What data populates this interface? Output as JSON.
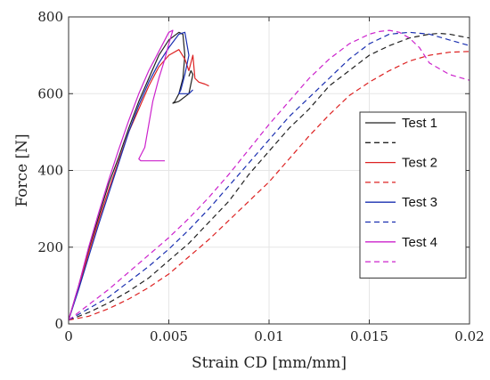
{
  "chart_data": {
    "type": "line",
    "xlabel": "Strain CD [mm/mm]",
    "ylabel": "Force [N]",
    "xlim": [
      0,
      0.02
    ],
    "ylim": [
      0,
      800
    ],
    "xticks": [
      0,
      0.005,
      0.01,
      0.015,
      0.02
    ],
    "xtick_labels": [
      "0",
      "0.005",
      "0.01",
      "0.015",
      "0.02"
    ],
    "yticks": [
      0,
      200,
      400,
      600,
      800
    ],
    "ytick_labels": [
      "0",
      "200",
      "400",
      "600",
      "800"
    ],
    "grid": true,
    "legend_position": "right",
    "series": [
      {
        "name": "Test 1",
        "color": "#222222",
        "style": "solid",
        "x": [
          0,
          0.0005,
          0.001,
          0.0015,
          0.002,
          0.0025,
          0.003,
          0.0035,
          0.004,
          0.0045,
          0.005,
          0.0055,
          0.0057,
          0.0058,
          0.0057,
          0.0055,
          0.0053,
          0.0052,
          0.0055,
          0.006,
          0.0062,
          0.0061,
          0.006
        ],
        "y": [
          10,
          100,
          195,
          280,
          365,
          435,
          510,
          580,
          640,
          700,
          740,
          760,
          755,
          700,
          640,
          600,
          580,
          575,
          580,
          600,
          650,
          660,
          645
        ]
      },
      {
        "name": "",
        "color": "#222222",
        "style": "dashed",
        "x": [
          0,
          0.001,
          0.002,
          0.003,
          0.004,
          0.005,
          0.006,
          0.007,
          0.008,
          0.009,
          0.01,
          0.011,
          0.012,
          0.013,
          0.014,
          0.015,
          0.016,
          0.017,
          0.018,
          0.0185,
          0.019,
          0.0195,
          0.02
        ],
        "y": [
          10,
          30,
          55,
          85,
          120,
          165,
          210,
          265,
          320,
          390,
          450,
          510,
          560,
          620,
          660,
          700,
          725,
          745,
          755,
          757,
          755,
          750,
          745
        ]
      },
      {
        "name": "Test 2",
        "color": "#dd2222",
        "style": "solid",
        "x": [
          0,
          0.0005,
          0.001,
          0.0015,
          0.002,
          0.0025,
          0.003,
          0.0035,
          0.004,
          0.0045,
          0.005,
          0.0055,
          0.0058,
          0.006,
          0.0062,
          0.0063,
          0.0065,
          0.0068,
          0.007
        ],
        "y": [
          10,
          95,
          185,
          270,
          350,
          425,
          500,
          560,
          620,
          670,
          700,
          715,
          690,
          660,
          700,
          640,
          630,
          625,
          620
        ]
      },
      {
        "name": "",
        "color": "#dd2222",
        "style": "dashed",
        "x": [
          0,
          0.001,
          0.002,
          0.003,
          0.004,
          0.005,
          0.006,
          0.007,
          0.008,
          0.009,
          0.01,
          0.011,
          0.012,
          0.013,
          0.014,
          0.015,
          0.016,
          0.017,
          0.018,
          0.019,
          0.02
        ],
        "y": [
          10,
          20,
          40,
          65,
          95,
          130,
          175,
          220,
          270,
          320,
          370,
          430,
          490,
          545,
          595,
          630,
          660,
          685,
          700,
          708,
          710
        ]
      },
      {
        "name": "Test 3",
        "color": "#1a2fb0",
        "style": "solid",
        "x": [
          0,
          0.0005,
          0.001,
          0.0015,
          0.002,
          0.0025,
          0.003,
          0.0035,
          0.004,
          0.0045,
          0.005,
          0.0055,
          0.0058,
          0.006,
          0.0058,
          0.0056,
          0.0055,
          0.006,
          0.0062
        ],
        "y": [
          10,
          90,
          175,
          260,
          340,
          420,
          500,
          570,
          630,
          680,
          720,
          755,
          760,
          700,
          650,
          610,
          600,
          600,
          610
        ]
      },
      {
        "name": "",
        "color": "#1a2fb0",
        "style": "dashed",
        "x": [
          0,
          0.001,
          0.002,
          0.003,
          0.004,
          0.005,
          0.006,
          0.007,
          0.008,
          0.009,
          0.01,
          0.011,
          0.012,
          0.013,
          0.014,
          0.015,
          0.016,
          0.017,
          0.018,
          0.019,
          0.02
        ],
        "y": [
          10,
          40,
          70,
          110,
          150,
          195,
          245,
          300,
          360,
          420,
          480,
          540,
          590,
          640,
          690,
          730,
          755,
          760,
          755,
          740,
          725
        ]
      },
      {
        "name": "Test 4",
        "color": "#cc22cc",
        "style": "solid",
        "x": [
          0,
          0.0005,
          0.001,
          0.0015,
          0.002,
          0.0025,
          0.003,
          0.0035,
          0.004,
          0.0045,
          0.005,
          0.0052,
          0.005,
          0.0048,
          0.0045,
          0.0042,
          0.004,
          0.0038,
          0.0035,
          0.0036,
          0.0048
        ],
        "y": [
          10,
          100,
          200,
          290,
          375,
          455,
          530,
          600,
          660,
          710,
          760,
          765,
          730,
          690,
          640,
          580,
          520,
          460,
          430,
          425,
          425
        ]
      },
      {
        "name": "",
        "color": "#cc22cc",
        "style": "dashed",
        "x": [
          0,
          0.001,
          0.002,
          0.003,
          0.004,
          0.005,
          0.006,
          0.007,
          0.008,
          0.009,
          0.01,
          0.011,
          0.012,
          0.013,
          0.014,
          0.015,
          0.0155,
          0.016,
          0.0165,
          0.017,
          0.0175,
          0.018,
          0.019,
          0.02
        ],
        "y": [
          10,
          50,
          90,
          135,
          180,
          225,
          275,
          330,
          390,
          455,
          520,
          580,
          640,
          690,
          730,
          755,
          762,
          765,
          760,
          745,
          720,
          680,
          650,
          635
        ]
      }
    ],
    "legend": [
      {
        "label": "Test 1",
        "color": "#222222",
        "style": "solid"
      },
      {
        "label": "",
        "color": "#222222",
        "style": "dashed"
      },
      {
        "label": "Test 2",
        "color": "#dd2222",
        "style": "solid"
      },
      {
        "label": "",
        "color": "#dd2222",
        "style": "dashed"
      },
      {
        "label": "Test 3",
        "color": "#1a2fb0",
        "style": "solid"
      },
      {
        "label": "",
        "color": "#1a2fb0",
        "style": "dashed"
      },
      {
        "label": "Test 4",
        "color": "#cc22cc",
        "style": "solid"
      },
      {
        "label": "",
        "color": "#cc22cc",
        "style": "dashed"
      }
    ]
  }
}
